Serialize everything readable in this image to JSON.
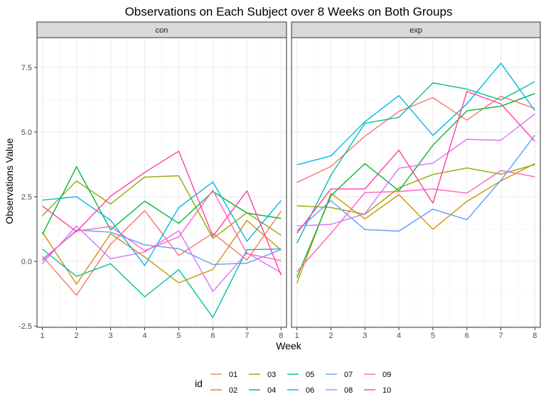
{
  "chart_data": {
    "type": "line",
    "title": "Observations on Each Subject over 8 Weeks on Both Groups",
    "xlabel": "Week",
    "ylabel": "Observations Value",
    "x": [
      1,
      2,
      3,
      4,
      5,
      6,
      7,
      8
    ],
    "xlim": [
      0.84,
      8.16
    ],
    "ylim": [
      -2.55,
      8.65
    ],
    "y_ticks": [
      -2.5,
      0.0,
      2.5,
      5.0,
      7.5
    ],
    "y_tick_labels": [
      "-2.5",
      "0.0",
      "2.5",
      "5.0",
      "7.5"
    ],
    "x_ticks": [
      1,
      2,
      3,
      4,
      5,
      6,
      7,
      8
    ],
    "x_tick_labels": [
      "1",
      "2",
      "3",
      "4",
      "5",
      "6",
      "7",
      "8"
    ],
    "grid": true,
    "legend": {
      "title": "id",
      "position": "bottom",
      "entries": [
        "01",
        "02",
        "03",
        "04",
        "05",
        "06",
        "07",
        "08",
        "09",
        "10"
      ],
      "colors": [
        "#F8766D",
        "#D39200",
        "#93AA00",
        "#00BA38",
        "#00C19F",
        "#00B9E3",
        "#619CFF",
        "#DB72FB",
        "#FF61C3",
        "#FF3FA4"
      ]
    },
    "panels": [
      {
        "label": "con",
        "series": [
          {
            "name": "01",
            "values": [
              0.2,
              -1.31,
              0.66,
              1.96,
              0.23,
              1.09,
              0.05,
              1.94
            ]
          },
          {
            "name": "02",
            "values": [
              1.13,
              -0.88,
              1.07,
              0.17,
              -0.83,
              -0.31,
              1.58,
              0.44
            ]
          },
          {
            "name": "03",
            "values": [
              1.77,
              3.11,
              2.22,
              3.26,
              3.31,
              0.89,
              1.88,
              1.01
            ]
          },
          {
            "name": "04",
            "values": [
              1.04,
              3.66,
              1.22,
              2.33,
              1.47,
              2.7,
              1.87,
              1.66
            ]
          },
          {
            "name": "05",
            "values": [
              0.47,
              -0.58,
              -0.09,
              -1.37,
              -0.32,
              -2.17,
              0.45,
              0.48
            ]
          },
          {
            "name": "06",
            "values": [
              2.37,
              2.5,
              1.59,
              -0.16,
              2.08,
              3.07,
              0.78,
              2.35
            ]
          },
          {
            "name": "07",
            "values": [
              0.03,
              1.21,
              1.13,
              0.64,
              0.49,
              -0.12,
              -0.07,
              0.46
            ]
          },
          {
            "name": "08",
            "values": [
              -0.09,
              1.37,
              0.1,
              0.36,
              1.18,
              -1.16,
              0.33,
              -0.44
            ]
          },
          {
            "name": "09",
            "values": [
              0.08,
              1.17,
              1.35,
              0.41,
              0.95,
              2.75,
              0.3,
              0.03
            ]
          },
          {
            "name": "10",
            "values": [
              2.14,
              1.15,
              2.52,
              3.44,
              4.26,
              0.97,
              2.73,
              -0.53
            ]
          }
        ]
      },
      {
        "label": "exp",
        "series": [
          {
            "name": "01",
            "values": [
              3.05,
              3.67,
              4.84,
              5.8,
              6.33,
              5.46,
              6.38,
              5.91
            ]
          },
          {
            "name": "02",
            "values": [
              -0.84,
              2.63,
              1.64,
              2.58,
              1.24,
              2.32,
              3.11,
              3.78
            ]
          },
          {
            "name": "03",
            "values": [
              2.15,
              2.08,
              1.82,
              2.84,
              3.36,
              3.61,
              3.37,
              3.74
            ]
          },
          {
            "name": "04",
            "values": [
              -0.62,
              2.54,
              3.78,
              2.73,
              4.49,
              5.82,
              6.0,
              6.49
            ]
          },
          {
            "name": "05",
            "values": [
              0.7,
              3.33,
              5.34,
              5.57,
              6.9,
              6.66,
              6.24,
              6.95
            ]
          },
          {
            "name": "06",
            "values": [
              3.73,
              4.08,
              5.4,
              6.41,
              4.87,
              6.09,
              7.66,
              5.83
            ]
          },
          {
            "name": "07",
            "values": [
              1.18,
              2.35,
              1.23,
              1.17,
              2.02,
              1.61,
              3.13,
              4.88
            ]
          },
          {
            "name": "08",
            "values": [
              1.37,
              1.43,
              1.84,
              3.6,
              3.8,
              4.72,
              4.68,
              5.7
            ]
          },
          {
            "name": "09",
            "values": [
              -0.4,
              1.08,
              2.66,
              2.7,
              2.8,
              2.64,
              3.51,
              3.27
            ]
          },
          {
            "name": "10",
            "values": [
              1.09,
              2.8,
              2.8,
              4.3,
              2.25,
              6.57,
              6.09,
              4.64
            ]
          }
        ]
      }
    ]
  }
}
